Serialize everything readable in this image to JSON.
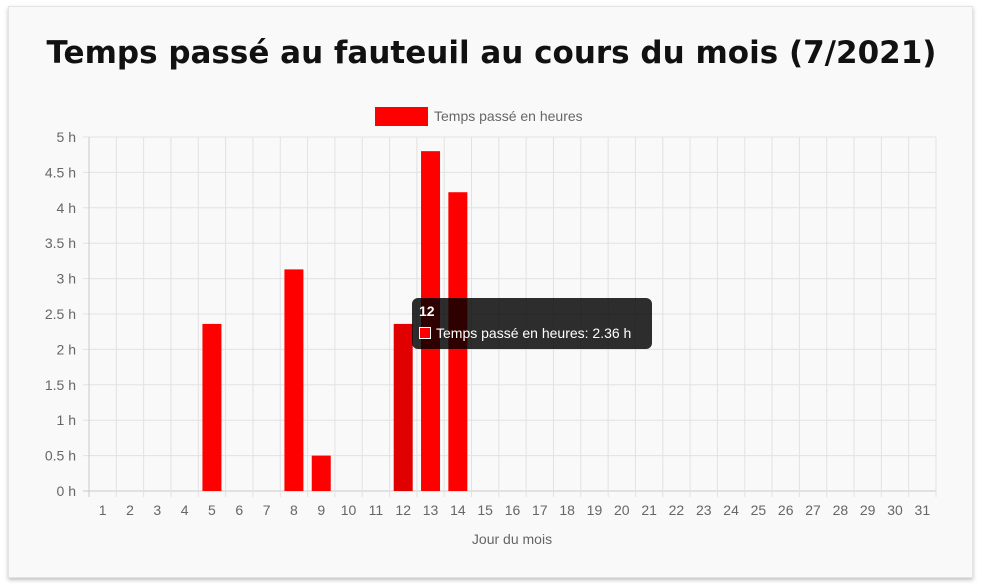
{
  "chart_data": {
    "type": "bar",
    "title": "Temps passé au fauteuil au cours du mois (7/2021)",
    "xlabel": "Jour du mois",
    "ylabel": "",
    "categories": [
      "1",
      "2",
      "3",
      "4",
      "5",
      "6",
      "7",
      "8",
      "9",
      "10",
      "11",
      "12",
      "13",
      "14",
      "15",
      "16",
      "17",
      "18",
      "19",
      "20",
      "21",
      "22",
      "23",
      "24",
      "25",
      "26",
      "27",
      "28",
      "29",
      "30",
      "31"
    ],
    "series": [
      {
        "name": "Temps passé en heures",
        "color": "#ff0000",
        "values": [
          0,
          0,
          0,
          0,
          2.36,
          0,
          0,
          3.13,
          0.5,
          0,
          0,
          2.36,
          4.8,
          4.22,
          0,
          0,
          0,
          0,
          0,
          0,
          0,
          0,
          0,
          0,
          0,
          0,
          0,
          0,
          0,
          0,
          0
        ]
      }
    ],
    "ylim": [
      0,
      5
    ],
    "yticks": [
      "0 h",
      "0.5 h",
      "1 h",
      "1.5 h",
      "2 h",
      "2.5 h",
      "3 h",
      "3.5 h",
      "4 h",
      "4.5 h",
      "5 h"
    ],
    "grid": true,
    "legend": "top-center",
    "highlighted_category": "12"
  },
  "tooltip": {
    "title": "12",
    "series_name": "Temps passé en heures",
    "value": "2.36 h"
  }
}
